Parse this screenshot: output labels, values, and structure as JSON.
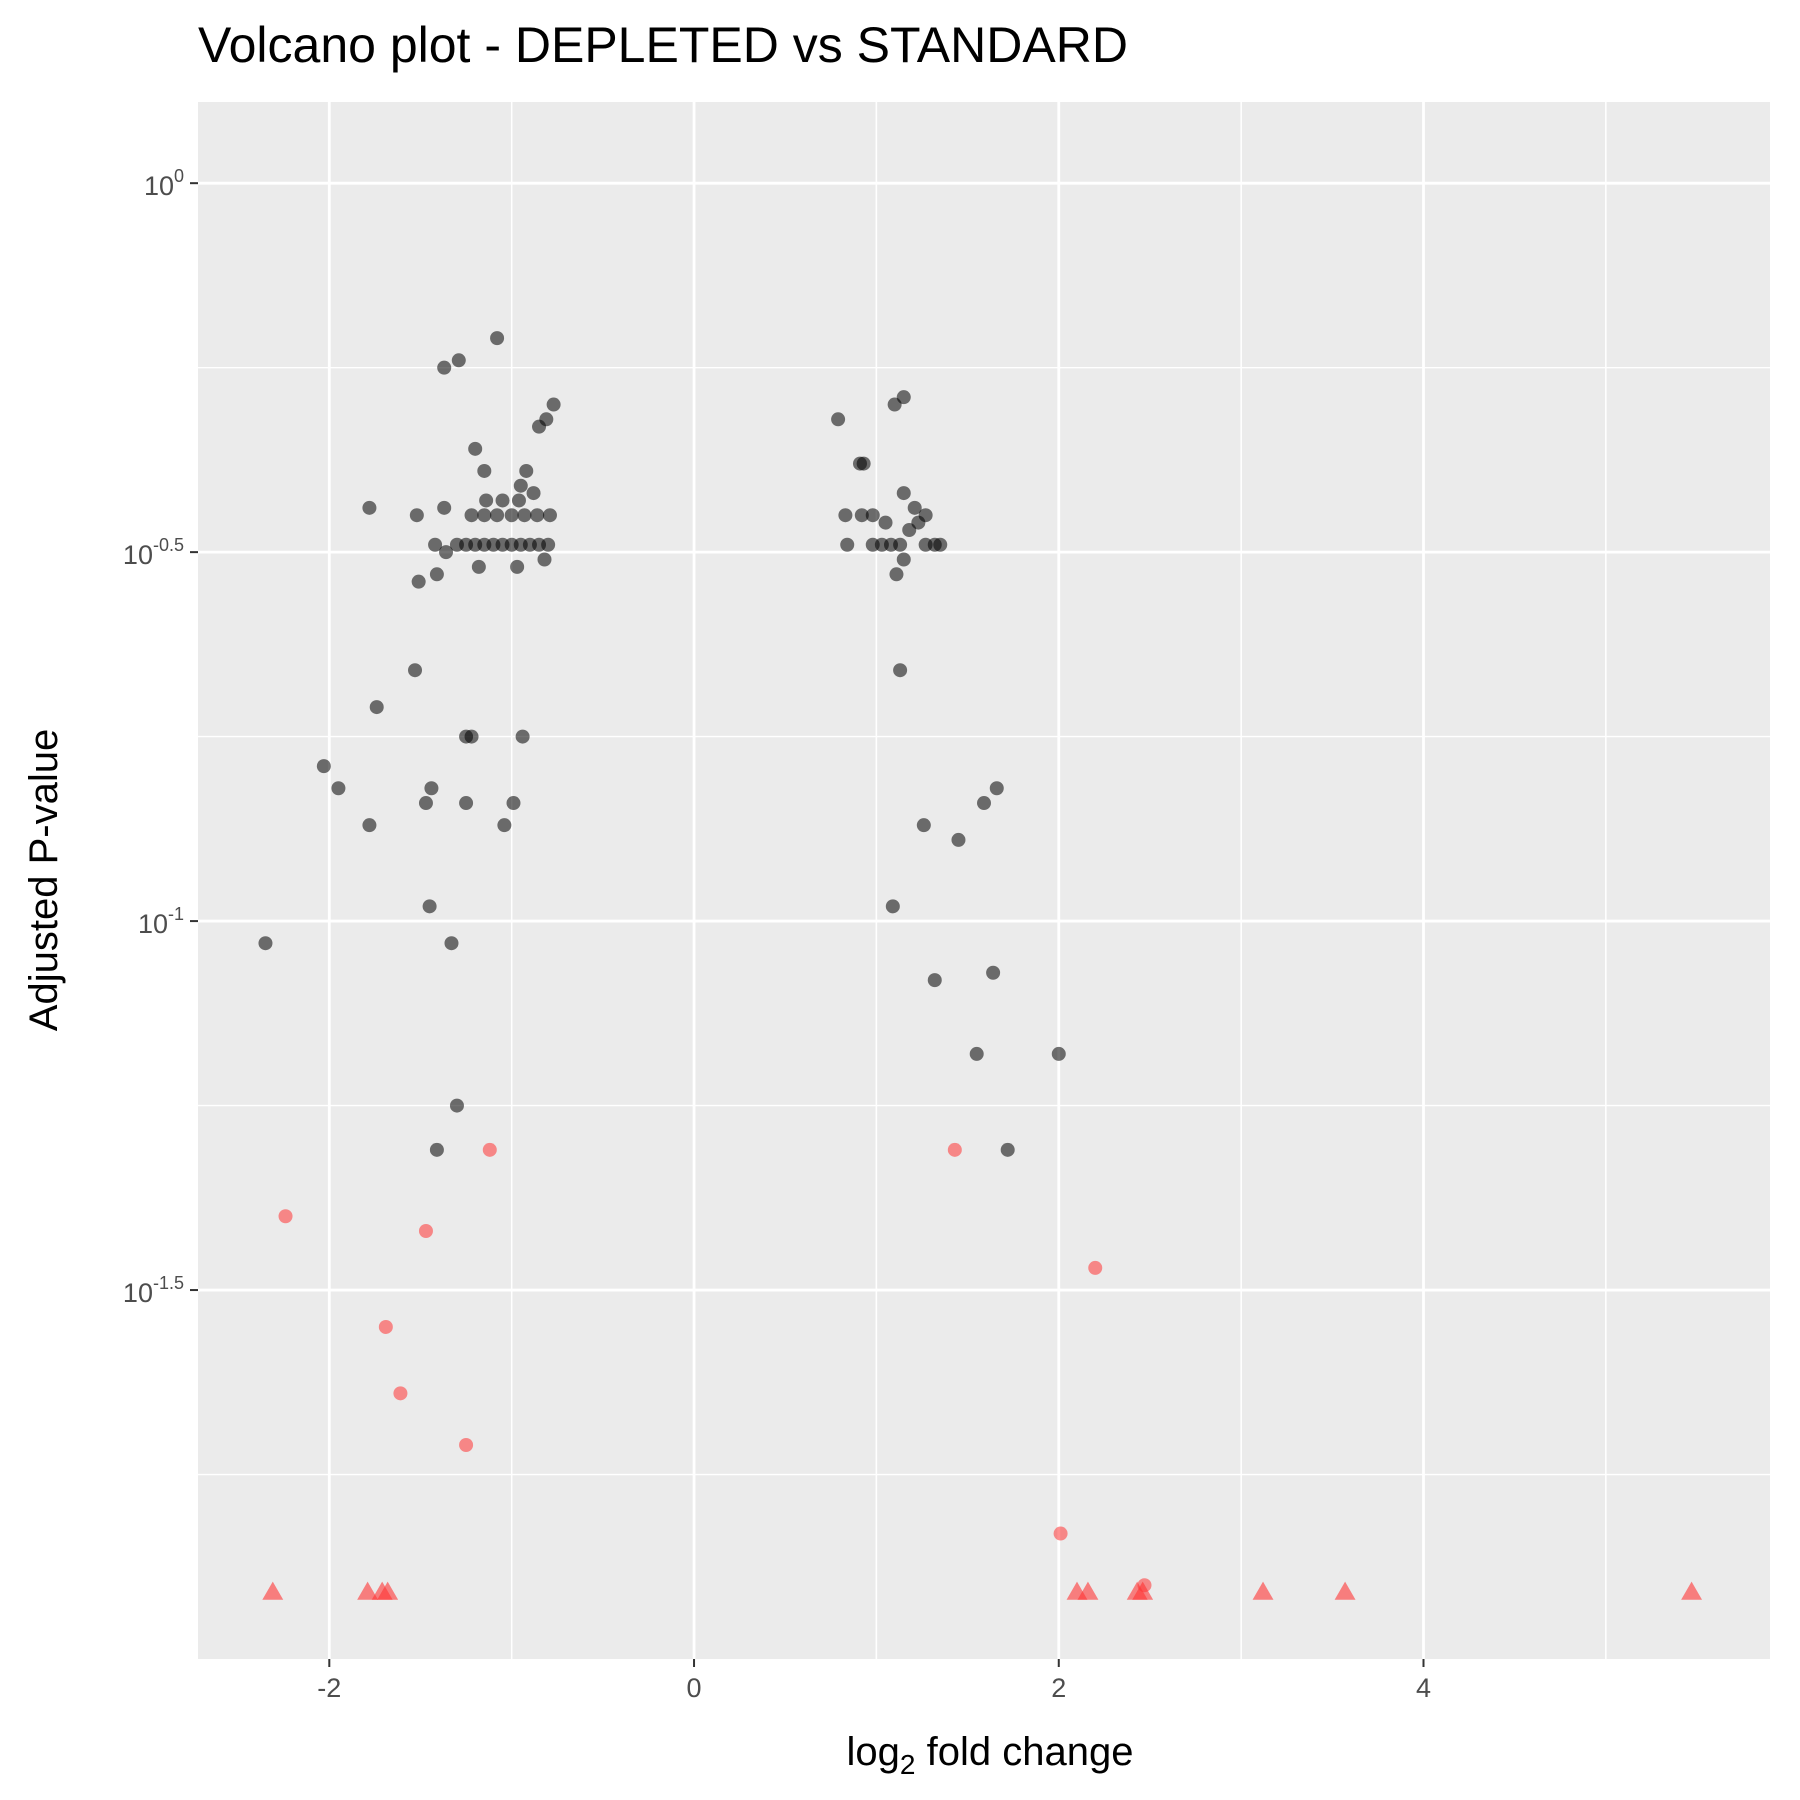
{
  "chart_data": {
    "type": "scatter",
    "title": "Volcano plot - DEPLETED vs STANDARD",
    "xlabel": {
      "prefix": "log",
      "subscript": "2",
      "suffix": " fold change"
    },
    "ylabel": "Adjusted P-value",
    "x_axis": {
      "range": [
        -2.72,
        5.9
      ],
      "ticks": [
        -2,
        0,
        2,
        4
      ],
      "tick_labels": [
        "-2",
        "0",
        "2",
        "4"
      ]
    },
    "y_axis": {
      "scale": "log10-reversed",
      "value_range_log10": [
        0.11,
        -2.0
      ],
      "ticks_log10": [
        0,
        -0.5,
        -1,
        -1.5
      ],
      "tick_labels": [
        {
          "base": "10",
          "exp": "0"
        },
        {
          "base": "10",
          "exp": "-0.5"
        },
        {
          "base": "10",
          "exp": "-1"
        },
        {
          "base": "10",
          "exp": "-1.5"
        }
      ]
    },
    "grid": true,
    "colors": {
      "panel": "#ebebeb",
      "grid": "#ffffff",
      "significant": "#ff3333",
      "not_significant": "#000000",
      "tick_text": "#4d4d4d"
    },
    "series": [
      {
        "marker": "triangle",
        "color": "#ff3333",
        "points_log10p": [
          [
            -2.31,
            -1.91
          ],
          [
            -1.79,
            -1.91
          ],
          [
            -1.71,
            -1.91
          ],
          [
            -1.68,
            -1.91
          ],
          [
            2.1,
            -1.91
          ],
          [
            2.16,
            -1.91
          ],
          [
            2.43,
            -1.91
          ],
          [
            2.46,
            -1.91
          ],
          [
            3.12,
            -1.91
          ],
          [
            3.57,
            -1.91
          ],
          [
            5.47,
            -1.91
          ]
        ]
      },
      {
        "marker": "circle",
        "color": "#ff3333",
        "points_log10p": [
          [
            2.47,
            -1.9
          ],
          [
            2.01,
            -1.83
          ],
          [
            -1.25,
            -1.71
          ],
          [
            -1.61,
            -1.64
          ],
          [
            -1.69,
            -1.55
          ],
          [
            2.2,
            -1.47
          ],
          [
            -1.47,
            -1.42
          ],
          [
            -2.24,
            -1.4
          ],
          [
            -1.12,
            -1.31
          ],
          [
            1.43,
            -1.31
          ]
        ]
      },
      {
        "marker": "circle",
        "color": "#000000",
        "points_log10p": [
          [
            -1.41,
            -1.31
          ],
          [
            1.72,
            -1.31
          ],
          [
            -1.3,
            -1.25
          ],
          [
            1.55,
            -1.18
          ],
          [
            2.0,
            -1.18
          ],
          [
            1.32,
            -1.08
          ],
          [
            1.64,
            -1.07
          ],
          [
            -2.35,
            -1.03
          ],
          [
            -1.33,
            -1.03
          ],
          [
            -1.45,
            -0.98
          ],
          [
            1.09,
            -0.98
          ],
          [
            1.45,
            -0.89
          ],
          [
            -1.78,
            -0.87
          ],
          [
            -1.04,
            -0.87
          ],
          [
            1.26,
            -0.87
          ],
          [
            -1.47,
            -0.84
          ],
          [
            -1.44,
            -0.82
          ],
          [
            -1.25,
            -0.84
          ],
          [
            -0.99,
            -0.84
          ],
          [
            1.59,
            -0.84
          ],
          [
            1.66,
            -0.82
          ],
          [
            -1.95,
            -0.82
          ],
          [
            -2.03,
            -0.79
          ],
          [
            -1.25,
            -0.75
          ],
          [
            -1.22,
            -0.75
          ],
          [
            -0.94,
            -0.75
          ],
          [
            -1.74,
            -0.71
          ],
          [
            -1.53,
            -0.66
          ],
          [
            1.13,
            -0.66
          ],
          [
            -1.51,
            -0.54
          ],
          [
            1.11,
            -0.53
          ],
          [
            -1.41,
            -0.53
          ],
          [
            -1.18,
            -0.52
          ],
          [
            -0.97,
            -0.52
          ],
          [
            -0.82,
            -0.51
          ],
          [
            1.15,
            -0.51
          ],
          [
            -1.78,
            -0.44
          ],
          [
            -1.52,
            -0.45
          ],
          [
            -1.37,
            -0.44
          ],
          [
            -1.42,
            -0.49
          ],
          [
            -1.36,
            -0.5
          ],
          [
            -1.3,
            -0.49
          ],
          [
            -1.25,
            -0.49
          ],
          [
            -1.2,
            -0.49
          ],
          [
            -1.15,
            -0.49
          ],
          [
            -1.1,
            -0.49
          ],
          [
            -1.05,
            -0.49
          ],
          [
            -1.0,
            -0.49
          ],
          [
            -0.95,
            -0.49
          ],
          [
            -0.9,
            -0.49
          ],
          [
            -0.85,
            -0.49
          ],
          [
            -0.8,
            -0.49
          ],
          [
            -1.22,
            -0.45
          ],
          [
            -1.15,
            -0.45
          ],
          [
            -1.08,
            -0.45
          ],
          [
            -1.0,
            -0.45
          ],
          [
            -0.93,
            -0.45
          ],
          [
            -0.86,
            -0.45
          ],
          [
            -0.79,
            -0.45
          ],
          [
            -1.14,
            -0.43
          ],
          [
            -1.05,
            -0.43
          ],
          [
            -0.96,
            -0.43
          ],
          [
            -0.88,
            -0.42
          ],
          [
            0.84,
            -0.49
          ],
          [
            0.98,
            -0.49
          ],
          [
            1.03,
            -0.49
          ],
          [
            1.08,
            -0.49
          ],
          [
            1.13,
            -0.49
          ],
          [
            1.27,
            -0.49
          ],
          [
            1.32,
            -0.49
          ],
          [
            1.35,
            -0.49
          ],
          [
            0.83,
            -0.45
          ],
          [
            0.92,
            -0.45
          ],
          [
            0.98,
            -0.45
          ],
          [
            1.05,
            -0.46
          ],
          [
            1.18,
            -0.47
          ],
          [
            1.23,
            -0.46
          ],
          [
            1.27,
            -0.45
          ],
          [
            1.21,
            -0.44
          ],
          [
            1.15,
            -0.42
          ],
          [
            -1.15,
            -0.39
          ],
          [
            -0.95,
            -0.41
          ],
          [
            -0.92,
            -0.39
          ],
          [
            -0.85,
            -0.33
          ],
          [
            -0.81,
            -0.32
          ],
          [
            -1.2,
            -0.36
          ],
          [
            -0.77,
            -0.3
          ],
          [
            0.91,
            -0.38
          ],
          [
            0.93,
            -0.38
          ],
          [
            0.79,
            -0.32
          ],
          [
            1.1,
            -0.3
          ],
          [
            1.15,
            -0.29
          ],
          [
            -1.37,
            -0.25
          ],
          [
            -1.29,
            -0.24
          ],
          [
            -1.08,
            -0.21
          ]
        ]
      }
    ]
  }
}
